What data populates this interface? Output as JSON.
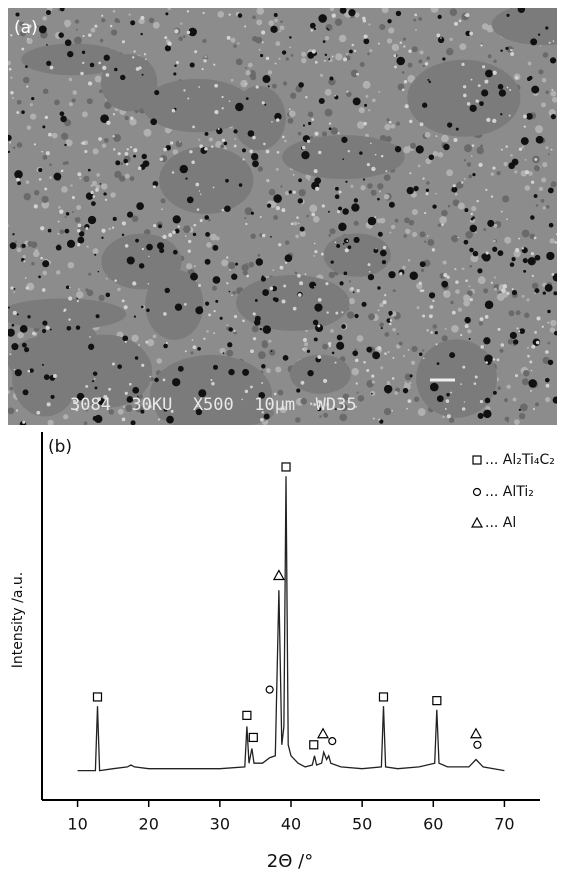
{
  "panel_a": {
    "label": "(a)",
    "info_bar": "3084  30KU  X500  10µm  WD35"
  },
  "chart_data": {
    "type": "line",
    "panel_label": "(b)",
    "xlabel": "2Θ /°",
    "ylabel": "Intensity /a.u.",
    "xlim": [
      5,
      75
    ],
    "ylim": [
      0,
      100
    ],
    "xticks": [
      10,
      20,
      30,
      40,
      50,
      60,
      70
    ],
    "color": "#222222",
    "x": [
      10,
      12.5,
      12.8,
      13.1,
      15,
      17,
      17.5,
      18,
      20,
      25,
      30,
      33.5,
      33.8,
      34.1,
      34.5,
      34.8,
      36,
      37,
      37.8,
      38.3,
      38.7,
      39.0,
      39.3,
      39.6,
      40,
      41,
      42,
      43,
      43.3,
      43.6,
      44.3,
      44.6,
      45.0,
      45.3,
      45.6,
      47,
      50,
      52.7,
      53,
      53.3,
      55,
      58,
      60.2,
      60.5,
      60.8,
      62,
      65,
      66,
      67,
      70
    ],
    "y": [
      8,
      8,
      25.5,
      8,
      8.5,
      9,
      9.5,
      9,
      8.5,
      8.5,
      8.5,
      9,
      20,
      10,
      14,
      10,
      10,
      11.5,
      12,
      57,
      15,
      20,
      88,
      15,
      12,
      10,
      9,
      9.5,
      12,
      9.5,
      10,
      13,
      11,
      12,
      10,
      9,
      8.5,
      9,
      25.5,
      9,
      8.5,
      9,
      10,
      24.5,
      10,
      9,
      9,
      11,
      9,
      8
    ],
    "phases": [
      {
        "name": "... Al₂Ti₄C₂",
        "marker": "square",
        "x": [
          12.8,
          33.8,
          34.7,
          39.3,
          43.2,
          53,
          60.5
        ],
        "y": [
          28,
          23,
          17,
          90.5,
          15,
          28,
          27
        ]
      },
      {
        "name": "... AlTi₂",
        "marker": "circle",
        "x": [
          37.0,
          45.8,
          66.2
        ],
        "y": [
          30,
          16,
          15
        ]
      },
      {
        "name": "... Al",
        "marker": "triangle",
        "x": [
          38.3,
          44.5,
          66
        ],
        "y": [
          61,
          18,
          18
        ]
      }
    ]
  }
}
